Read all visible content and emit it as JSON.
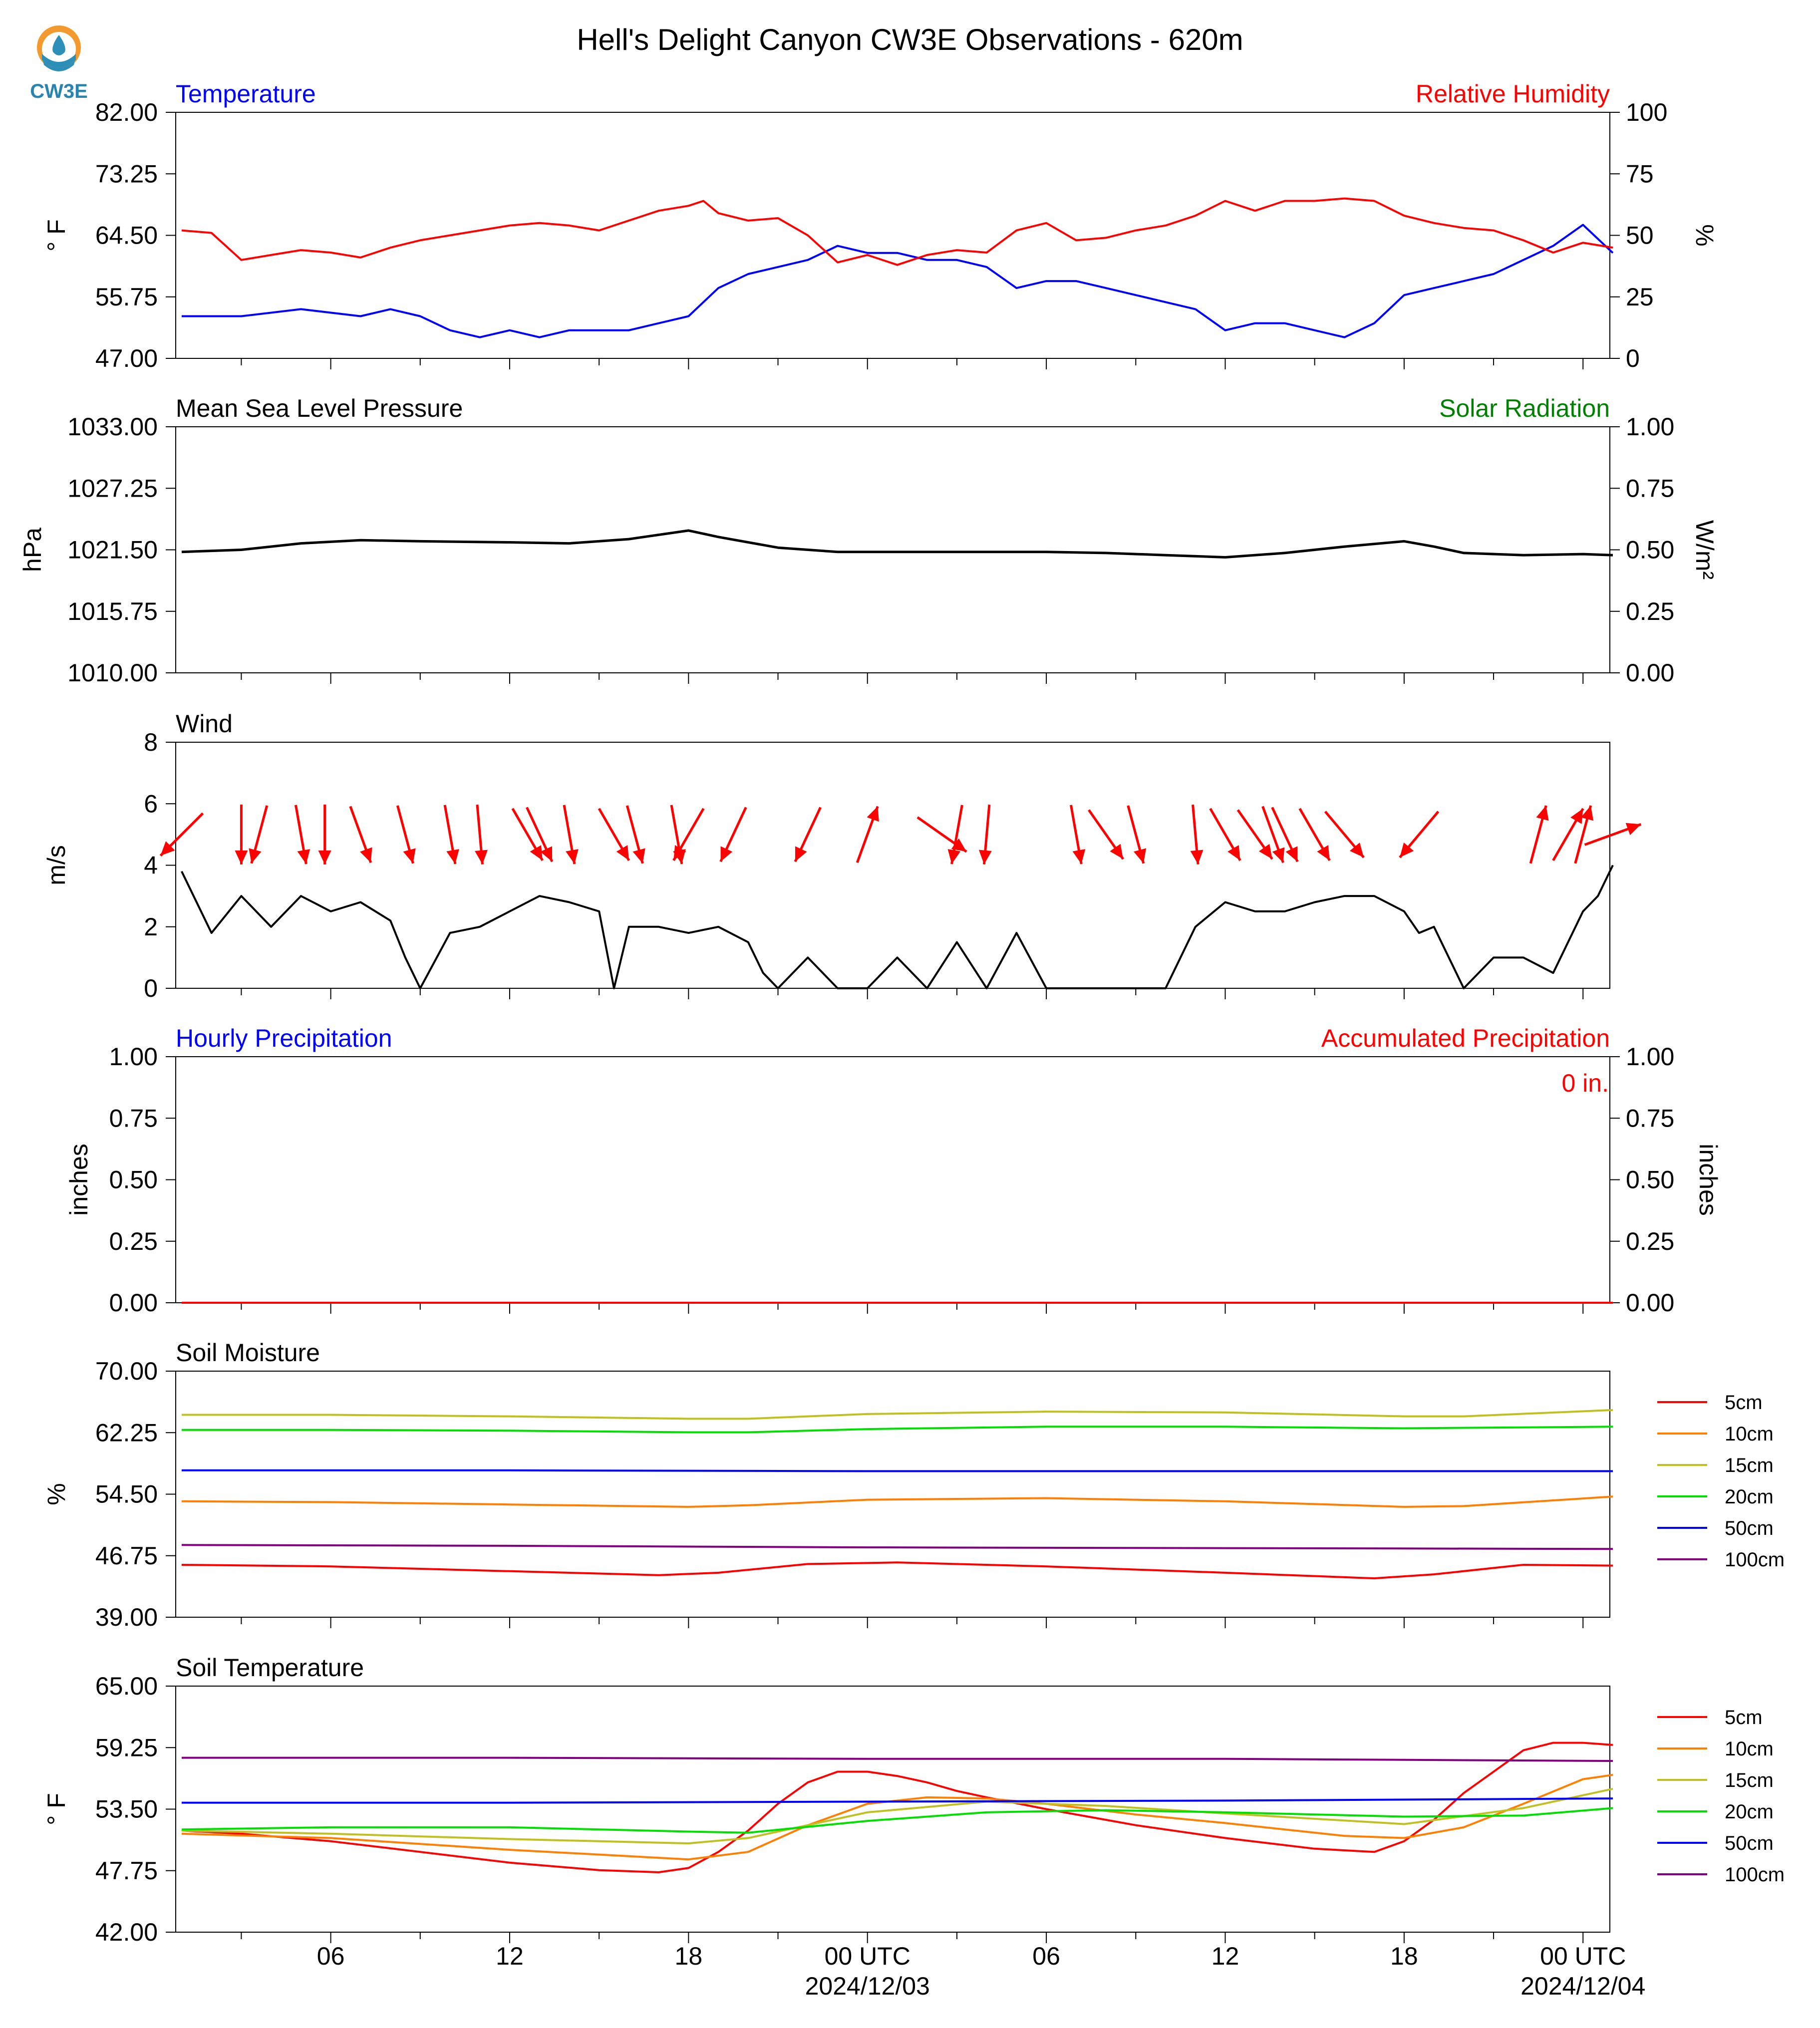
{
  "title": "Hell's Delight Canyon CW3E Observations - 620m",
  "logo": {
    "text": "CW3E",
    "icon": "water-drop-sun-icon",
    "colors": {
      "ring": "#f29a2e",
      "water": "#2c8fb8",
      "text": "#2a84b0"
    }
  },
  "x_ticks": [
    {
      "label": "06",
      "sub": "",
      "hour": 6
    },
    {
      "label": "12",
      "sub": "",
      "hour": 12
    },
    {
      "label": "18",
      "sub": "",
      "hour": 18
    },
    {
      "label": "00 UTC",
      "sub": "2024/12/03",
      "hour": 24
    },
    {
      "label": "06",
      "sub": "",
      "hour": 30
    },
    {
      "label": "12",
      "sub": "",
      "hour": 36
    },
    {
      "label": "18",
      "sub": "",
      "hour": 42
    },
    {
      "label": "00 UTC",
      "sub": "2024/12/04",
      "hour": 48
    }
  ],
  "chart_data": [
    {
      "id": "temp",
      "type": "line",
      "title_left": "Temperature",
      "title_left_color": "#0000ff",
      "title_right": "Relative Humidity",
      "title_right_color": "#ff0000",
      "ylabel": "° F",
      "y2label": "%",
      "ylim": [
        47,
        82
      ],
      "yticks": [
        "82.00",
        "73.25",
        "64.50",
        "55.75",
        "47.00"
      ],
      "y2lim": [
        0,
        100
      ],
      "y2ticks": [
        "100",
        "75",
        "50",
        "25",
        "0"
      ],
      "series": [
        {
          "axis": "left",
          "color": "#0000ff",
          "x": [
            1,
            3,
            5,
            7,
            8,
            9,
            10,
            11,
            12,
            13,
            14,
            15,
            16,
            17,
            18,
            18.5,
            19,
            20,
            21,
            22,
            23,
            24,
            25,
            26,
            27,
            28,
            29,
            30,
            31,
            32,
            33,
            34,
            35,
            36,
            37,
            38,
            39,
            40,
            41,
            42,
            43,
            44,
            45,
            46,
            47,
            48,
            49
          ],
          "y": [
            53,
            53,
            54,
            53,
            54,
            53,
            51,
            50,
            51,
            50,
            51,
            51,
            51,
            52,
            53,
            55,
            57,
            59,
            60,
            61,
            63,
            62,
            62,
            61,
            61,
            60,
            57,
            58,
            58,
            57,
            56,
            55,
            54,
            51,
            52,
            52,
            51,
            50,
            52,
            56,
            57,
            58,
            59,
            61,
            63,
            66,
            62
          ]
        },
        {
          "axis": "right",
          "color": "#ff0000",
          "x": [
            1,
            2,
            3,
            4,
            5,
            6,
            7,
            8,
            9,
            10,
            11,
            12,
            13,
            14,
            15,
            16,
            17,
            18,
            18.5,
            19,
            20,
            21,
            22,
            23,
            24,
            25,
            26,
            27,
            28,
            29,
            30,
            31,
            32,
            33,
            34,
            35,
            36,
            37,
            38,
            39,
            40,
            41,
            42,
            43,
            44,
            45,
            46,
            47,
            48,
            49
          ],
          "y": [
            52,
            51,
            40,
            42,
            44,
            43,
            41,
            45,
            48,
            50,
            52,
            54,
            55,
            54,
            52,
            56,
            60,
            62,
            64,
            59,
            56,
            57,
            50,
            39,
            42,
            38,
            42,
            44,
            43,
            52,
            55,
            48,
            49,
            52,
            54,
            58,
            64,
            60,
            64,
            64,
            65,
            64,
            58,
            55,
            53,
            52,
            48,
            43,
            47,
            45
          ]
        }
      ]
    },
    {
      "id": "pres",
      "type": "line",
      "title_left": "Mean Sea Level Pressure",
      "title_left_color": "#000000",
      "title_right": "Solar Radiation",
      "title_right_color": "#008000",
      "ylabel": "hPa",
      "y2label": "W/m²",
      "ylim": [
        1010,
        1033
      ],
      "yticks": [
        "1033.00",
        "1027.25",
        "1021.50",
        "1015.75",
        "1010.00"
      ],
      "y2lim": [
        0,
        1
      ],
      "y2ticks": [
        "1.00",
        "0.75",
        "0.50",
        "0.25",
        "0.00"
      ],
      "series": [
        {
          "axis": "left",
          "color": "#000000",
          "x": [
            1,
            3,
            5,
            7,
            9,
            12,
            14,
            16,
            18,
            19,
            21,
            23,
            25,
            27,
            30,
            32,
            34,
            36,
            38,
            40,
            42,
            43,
            44,
            46,
            48,
            49
          ],
          "y": [
            1021.3,
            1021.5,
            1022.1,
            1022.4,
            1022.3,
            1022.2,
            1022.1,
            1022.5,
            1023.3,
            1022.7,
            1021.7,
            1021.3,
            1021.3,
            1021.3,
            1021.3,
            1021.2,
            1021,
            1020.8,
            1021.2,
            1021.8,
            1022.3,
            1021.8,
            1021.2,
            1021,
            1021.1,
            1021
          ]
        }
      ]
    },
    {
      "id": "wind",
      "type": "line",
      "title_left": "Wind",
      "title_left_color": "#000000",
      "title_right": "",
      "title_right_color": "#000000",
      "ylabel": "m/s",
      "y2label": "",
      "ylim": [
        0,
        8
      ],
      "yticks": [
        "8",
        "6",
        "4",
        "2",
        "0"
      ],
      "y2lim": null,
      "y2ticks": [],
      "series": [
        {
          "axis": "left",
          "color": "#000000",
          "x": [
            1,
            2,
            3,
            4,
            5,
            6,
            7,
            8,
            8.5,
            9,
            10,
            11,
            12,
            13,
            14,
            15,
            15.5,
            16,
            17,
            18,
            19,
            20,
            20.5,
            21,
            22,
            23,
            24,
            25,
            26,
            27,
            28,
            29,
            30,
            31,
            32,
            33,
            34,
            35,
            36,
            37,
            38,
            39,
            40,
            41,
            42,
            42.5,
            43,
            44,
            45,
            46,
            47,
            48,
            48.5,
            49
          ],
          "y": [
            3.8,
            1.8,
            3,
            2,
            3,
            2.5,
            2.8,
            2.2,
            1,
            0,
            1.8,
            2,
            2.5,
            3,
            2.8,
            2.5,
            0,
            2,
            2,
            1.8,
            2,
            1.5,
            0.5,
            0,
            1,
            0,
            0,
            1,
            0,
            1.5,
            0,
            1.8,
            0,
            0,
            0,
            0,
            0,
            2,
            2.8,
            2.5,
            2.5,
            2.8,
            3,
            3,
            2.5,
            1.8,
            2,
            0,
            1,
            1,
            0.5,
            2.5,
            3,
            4
          ]
        }
      ],
      "arrows": {
        "color": "#ff0000",
        "x": [
          1,
          3,
          3.6,
          5,
          5.8,
          7,
          8.5,
          10,
          11,
          12.6,
          13,
          14,
          15.5,
          16.2,
          17.6,
          18,
          19.5,
          22,
          24,
          26.5,
          27,
          28,
          31,
          32,
          33,
          35,
          36,
          37,
          37.6,
          38,
          39,
          40,
          42.5,
          46.5,
          47.5,
          48,
          49
        ],
        "angle_deg": [
          225,
          180,
          195,
          170,
          180,
          160,
          165,
          170,
          175,
          150,
          155,
          170,
          150,
          165,
          170,
          210,
          205,
          205,
          20,
          125,
          190,
          185,
          170,
          145,
          165,
          175,
          150,
          145,
          160,
          155,
          150,
          140,
          220,
          15,
          30,
          15,
          70
        ]
      }
    },
    {
      "id": "precip",
      "type": "bar",
      "title_left": "Hourly Precipitation",
      "title_left_color": "#0000ff",
      "title_right": "Accumulated Precipitation",
      "title_right_color": "#ff0000",
      "ylabel": "inches",
      "y2label": "inches",
      "ylim": [
        0,
        1
      ],
      "yticks": [
        "1.00",
        "0.75",
        "0.50",
        "0.25",
        "0.00"
      ],
      "y2lim": [
        0,
        1
      ],
      "y2ticks": [
        "1.00",
        "0.75",
        "0.50",
        "0.25",
        "0.00"
      ],
      "annotation": {
        "text": "0 in.",
        "color": "#ff0000"
      },
      "series": [
        {
          "axis": "right",
          "color": "#ff0000",
          "x": [
            1,
            49
          ],
          "y": [
            0,
            0
          ]
        }
      ]
    },
    {
      "id": "soilm",
      "type": "line",
      "title_left": "Soil Moisture",
      "title_left_color": "#000000",
      "title_right": "",
      "title_right_color": "#000000",
      "ylabel": "%",
      "y2label": "",
      "ylim": [
        39,
        70
      ],
      "yticks": [
        "70.00",
        "62.25",
        "54.50",
        "46.75",
        "39.00"
      ],
      "y2lim": null,
      "y2ticks": [],
      "legend": true,
      "series": [
        {
          "name": "5cm",
          "color": "#ff0000",
          "x": [
            1,
            6,
            12,
            17,
            19,
            22,
            25,
            30,
            36,
            41,
            43,
            46,
            49
          ],
          "y": [
            45.6,
            45.4,
            44.8,
            44.3,
            44.6,
            45.7,
            45.9,
            45.4,
            44.6,
            43.9,
            44.4,
            45.6,
            45.5
          ]
        },
        {
          "name": "10cm",
          "color": "#ff8000",
          "x": [
            1,
            6,
            12,
            18,
            20,
            24,
            30,
            36,
            42,
            44,
            49
          ],
          "y": [
            53.6,
            53.5,
            53.2,
            52.9,
            53.1,
            53.8,
            54,
            53.6,
            52.9,
            53,
            54.2
          ]
        },
        {
          "name": "15cm",
          "color": "#c0c020",
          "x": [
            1,
            6,
            12,
            18,
            20,
            24,
            30,
            36,
            42,
            44,
            49
          ],
          "y": [
            64.5,
            64.5,
            64.3,
            64,
            64,
            64.6,
            64.9,
            64.8,
            64.3,
            64.3,
            65.1
          ]
        },
        {
          "name": "20cm",
          "color": "#00e000",
          "x": [
            1,
            6,
            12,
            18,
            20,
            24,
            30,
            36,
            42,
            49
          ],
          "y": [
            62.6,
            62.6,
            62.5,
            62.3,
            62.3,
            62.7,
            63,
            63,
            62.8,
            63
          ]
        },
        {
          "name": "50cm",
          "color": "#0000ff",
          "x": [
            1,
            12,
            24,
            36,
            49
          ],
          "y": [
            57.5,
            57.5,
            57.4,
            57.4,
            57.4
          ]
        },
        {
          "name": "100cm",
          "color": "#800080",
          "x": [
            1,
            12,
            24,
            36,
            49
          ],
          "y": [
            48.1,
            48,
            47.8,
            47.7,
            47.6
          ]
        }
      ]
    },
    {
      "id": "soilt",
      "type": "line",
      "title_left": "Soil Temperature",
      "title_left_color": "#000000",
      "title_right": "",
      "title_right_color": "#000000",
      "ylabel": "° F",
      "y2label": "",
      "ylim": [
        42,
        65
      ],
      "yticks": [
        "65.00",
        "59.25",
        "53.50",
        "47.75",
        "42.00"
      ],
      "y2lim": null,
      "y2ticks": [],
      "legend": true,
      "series": [
        {
          "name": "5cm",
          "color": "#ff0000",
          "x": [
            1,
            3,
            6,
            9,
            12,
            15,
            17,
            18,
            19,
            20,
            21,
            22,
            23,
            24,
            25,
            26,
            27,
            28,
            30,
            33,
            36,
            39,
            41,
            42,
            43,
            44,
            45,
            46,
            47,
            48,
            49
          ],
          "y": [
            51.5,
            51.2,
            50.5,
            49.5,
            48.5,
            47.8,
            47.6,
            48,
            49.5,
            51.5,
            54,
            56,
            57,
            57,
            56.6,
            56,
            55.2,
            54.6,
            53.5,
            52,
            50.8,
            49.8,
            49.5,
            50.5,
            52.5,
            55,
            57,
            59,
            59.7,
            59.7,
            59.5
          ]
        },
        {
          "name": "10cm",
          "color": "#ff8000",
          "x": [
            1,
            6,
            12,
            18,
            20,
            22,
            24,
            26,
            28,
            30,
            33,
            36,
            40,
            42,
            44,
            46,
            48,
            49
          ],
          "y": [
            51.2,
            50.8,
            49.7,
            48.8,
            49.5,
            52,
            54,
            54.6,
            54.5,
            54,
            53,
            52.2,
            51,
            50.8,
            51.8,
            54,
            56.3,
            56.7
          ]
        },
        {
          "name": "15cm",
          "color": "#c0c020",
          "x": [
            1,
            6,
            12,
            18,
            20,
            24,
            28,
            32,
            36,
            42,
            46,
            49
          ],
          "y": [
            51.5,
            51.2,
            50.7,
            50.3,
            50.8,
            53.2,
            54.2,
            53.8,
            53.1,
            52.1,
            53.6,
            55.4
          ]
        },
        {
          "name": "20cm",
          "color": "#00e000",
          "x": [
            1,
            6,
            12,
            18,
            20,
            24,
            28,
            32,
            36,
            42,
            46,
            49
          ],
          "y": [
            51.6,
            51.8,
            51.8,
            51.4,
            51.3,
            52.4,
            53.2,
            53.4,
            53.2,
            52.8,
            52.9,
            53.6
          ]
        },
        {
          "name": "50cm",
          "color": "#0000ff",
          "x": [
            1,
            12,
            24,
            36,
            49
          ],
          "y": [
            54.1,
            54.1,
            54.2,
            54.3,
            54.5
          ]
        },
        {
          "name": "100cm",
          "color": "#800080",
          "x": [
            1,
            12,
            24,
            36,
            49
          ],
          "y": [
            58.3,
            58.3,
            58.2,
            58.2,
            58
          ]
        }
      ]
    }
  ]
}
